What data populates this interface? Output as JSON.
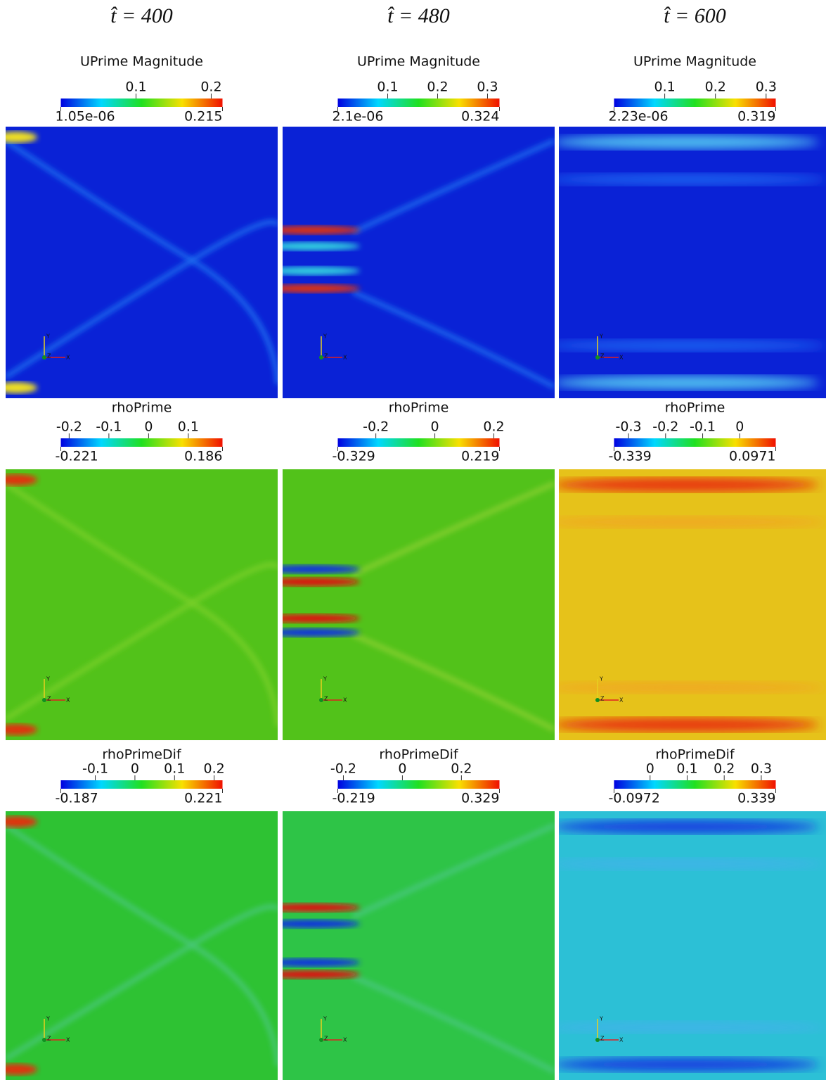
{
  "columns": [
    {
      "title": "t̂ = 400"
    },
    {
      "title": "t̂ = 480"
    },
    {
      "title": "t̂ = 600"
    }
  ],
  "rows": [
    {
      "panels": [
        {
          "title": "UPrime Magnitude",
          "min": {
            "value": 1.05e-06,
            "label": "1.05e-06"
          },
          "max": 0.215,
          "ticks": [
            0.1,
            0.2
          ]
        },
        {
          "title": "UPrime Magnitude",
          "min": {
            "value": 2.1e-06,
            "label": "2.1e-06"
          },
          "max": 0.324,
          "ticks": [
            0.1,
            0.2,
            0.3
          ]
        },
        {
          "title": "UPrime Magnitude",
          "min": {
            "value": 2.23e-06,
            "label": "2.23e-06"
          },
          "max": 0.319,
          "ticks": [
            0.1,
            0.2,
            0.3
          ]
        }
      ]
    },
    {
      "panels": [
        {
          "title": "rhoPrime",
          "min": -0.221,
          "max": 0.186,
          "ticks": [
            -0.2,
            -0.1,
            0,
            0.1
          ]
        },
        {
          "title": "rhoPrime",
          "min": -0.329,
          "max": 0.219,
          "ticks": [
            -0.2,
            0,
            0.2
          ]
        },
        {
          "title": "rhoPrime",
          "min": -0.339,
          "max": 0.0971,
          "ticks": [
            -0.3,
            -0.2,
            -0.1,
            0
          ]
        }
      ]
    },
    {
      "panels": [
        {
          "title": "rhoPrimeDif",
          "min": -0.187,
          "max": 0.221,
          "ticks": [
            -0.1,
            0,
            0.1,
            0.2
          ]
        },
        {
          "title": "rhoPrimeDif",
          "min": -0.219,
          "max": 0.329,
          "ticks": [
            -0.2,
            0,
            0.2
          ]
        },
        {
          "title": "rhoPrimeDif",
          "min": -0.0972,
          "max": 0.339,
          "ticks": [
            0,
            0.1,
            0.2,
            0.3
          ]
        }
      ]
    }
  ],
  "triad": {
    "x": "X",
    "y": "Y",
    "z": "Z"
  }
}
